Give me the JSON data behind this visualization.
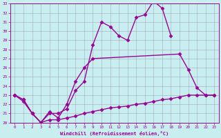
{
  "xlabel": "Windchill (Refroidissement éolien,°C)",
  "bg_color": "#c8eef0",
  "line_color": "#990099",
  "grid_color": "#9999aa",
  "xlim": [
    -0.5,
    23.5
  ],
  "ylim": [
    20,
    33
  ],
  "yticks": [
    20,
    21,
    22,
    23,
    24,
    25,
    26,
    27,
    28,
    29,
    30,
    31,
    32,
    33
  ],
  "xticks": [
    0,
    1,
    2,
    3,
    4,
    5,
    6,
    7,
    8,
    9,
    10,
    11,
    12,
    13,
    14,
    15,
    16,
    17,
    18,
    19,
    20,
    21,
    22,
    23
  ],
  "s1x": [
    0,
    1,
    2,
    3,
    4,
    5,
    6,
    7,
    8,
    9,
    10,
    11,
    12,
    13,
    14,
    15,
    16,
    17,
    18
  ],
  "s1y": [
    23.0,
    22.5,
    21.0,
    20.0,
    21.0,
    21.0,
    21.5,
    23.5,
    24.5,
    28.5,
    31.0,
    30.5,
    29.5,
    29.0,
    31.5,
    31.8,
    33.3,
    32.5,
    29.5
  ],
  "s2x": [
    0,
    1,
    2,
    3,
    4,
    5,
    6,
    7,
    8,
    9,
    19,
    20,
    21,
    22,
    23
  ],
  "s2y": [
    23.0,
    22.5,
    21.0,
    20.0,
    21.2,
    20.5,
    22.0,
    24.5,
    26.0,
    27.0,
    27.5,
    25.8,
    23.8,
    23.0,
    23.0
  ],
  "s3x": [
    0,
    1,
    2,
    3,
    4,
    5,
    6,
    7,
    8,
    9,
    10,
    11,
    12,
    13,
    14,
    15,
    16,
    17,
    18,
    19,
    20,
    21,
    22,
    23
  ],
  "s3y": [
    23.0,
    22.3,
    21.0,
    20.0,
    20.3,
    20.3,
    20.5,
    20.7,
    21.0,
    21.2,
    21.4,
    21.6,
    21.7,
    21.8,
    22.0,
    22.1,
    22.3,
    22.5,
    22.6,
    22.8,
    23.0,
    23.0,
    23.0,
    23.0
  ]
}
